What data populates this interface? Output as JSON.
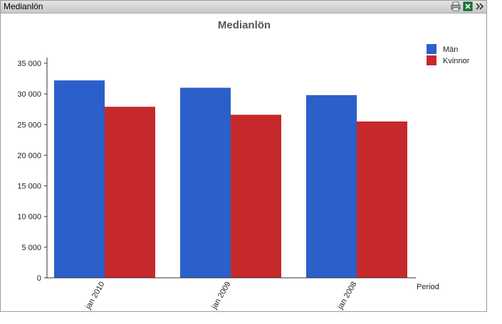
{
  "window": {
    "title": "Medianlön"
  },
  "caption_icons": [
    {
      "name": "print-icon"
    },
    {
      "name": "excel-icon"
    },
    {
      "name": "more-icon"
    }
  ],
  "colors": {
    "series_0": "#2b5fca",
    "series_1": "#c6292b"
  },
  "chart_data": {
    "type": "bar",
    "title": "Medianlön",
    "xlabel": "Period",
    "ylabel": "",
    "categories": [
      "jan 2010",
      "jan 2009",
      "jan 2008"
    ],
    "series": [
      {
        "name": "Män",
        "values": [
          32200,
          31000,
          29800
        ]
      },
      {
        "name": "Kvinnor",
        "values": [
          27900,
          26600,
          25500
        ]
      }
    ],
    "ylim": [
      0,
      35000
    ],
    "yticks": [
      0,
      5000,
      10000,
      15000,
      20000,
      25000,
      30000,
      35000
    ],
    "ytick_labels": [
      "0",
      "5 000",
      "10 000",
      "15 000",
      "20 000",
      "25 000",
      "30 000",
      "35 000"
    ],
    "grid": false,
    "legend": "top-right"
  }
}
